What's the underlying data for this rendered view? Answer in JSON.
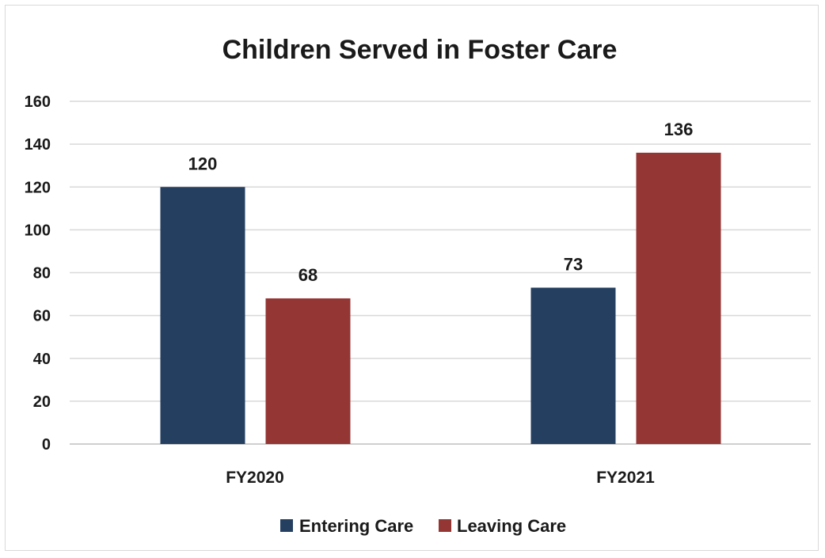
{
  "chart_data": {
    "type": "bar",
    "title": "Children Served in Foster Care",
    "xlabel": "",
    "ylabel": "",
    "categories": [
      "FY2020",
      "FY2021"
    ],
    "series": [
      {
        "name": "Entering Care",
        "values": [
          120,
          73
        ],
        "color": "#243f60"
      },
      {
        "name": "Leaving Care",
        "values": [
          68,
          136
        ],
        "color": "#943634"
      }
    ],
    "ylim": [
      0,
      160
    ],
    "yticks": [
      0,
      20,
      40,
      60,
      80,
      100,
      120,
      140,
      160
    ],
    "grid": true,
    "legend_position": "bottom",
    "data_labels": true
  }
}
